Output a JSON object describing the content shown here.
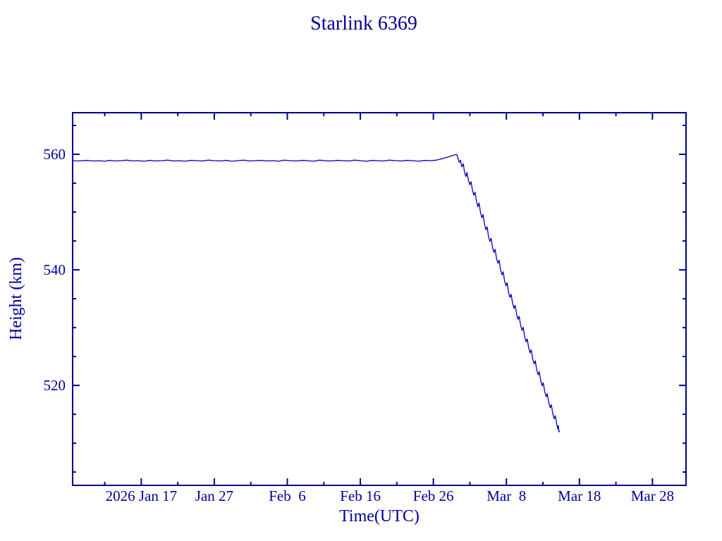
{
  "page": {
    "background": "#ffffff"
  },
  "chart_data": {
    "type": "line",
    "title": "Starlink 6369",
    "xlabel": "Time(UTC)",
    "ylabel": "Height (km)",
    "x_unit": "day-of-year 2026",
    "xlim": [
      7.6,
      91.6
    ],
    "ylim": [
      502.7,
      567.2
    ],
    "grid": false,
    "legend": null,
    "colors": {
      "background": "#ffffff",
      "axis": "#00008f",
      "text": "#00009a",
      "line": "#0000c0"
    },
    "x_ticks_major": [
      {
        "day": 17,
        "label": "2026 Jan 17"
      },
      {
        "day": 27,
        "label": "Jan 27"
      },
      {
        "day": 37,
        "label": "Feb  6"
      },
      {
        "day": 47,
        "label": "Feb 16"
      },
      {
        "day": 57,
        "label": "Feb 26"
      },
      {
        "day": 67,
        "label": "Mar  8"
      },
      {
        "day": 77,
        "label": "Mar 18"
      },
      {
        "day": 87,
        "label": "Mar 28"
      }
    ],
    "x_ticks_minor": [
      12,
      22,
      32,
      42,
      52,
      62,
      72,
      82
    ],
    "y_ticks_major": [
      {
        "value": 520,
        "label": "520"
      },
      {
        "value": 540,
        "label": "540"
      },
      {
        "value": 560,
        "label": "560"
      }
    ],
    "y_ticks_minor": [
      505,
      510,
      515,
      525,
      530,
      535,
      545,
      550,
      555,
      565
    ],
    "series": [
      {
        "name": "height_km",
        "x": [
          7.6,
          8.5,
          9.5,
          10.5,
          11.2,
          12.0,
          12.6,
          13.4,
          14.2,
          15.0,
          15.8,
          16.6,
          17.4,
          18.2,
          19.0,
          19.8,
          20.6,
          21.4,
          22.2,
          23.0,
          23.8,
          24.6,
          25.4,
          26.2,
          27.0,
          27.8,
          28.6,
          29.4,
          30.2,
          31.0,
          31.8,
          32.6,
          33.4,
          34.2,
          35.0,
          35.8,
          36.6,
          37.4,
          38.2,
          39.0,
          39.8,
          40.6,
          41.4,
          42.2,
          43.0,
          43.8,
          44.6,
          45.4,
          46.2,
          47.0,
          47.8,
          48.6,
          49.4,
          50.2,
          51.0,
          51.8,
          52.6,
          53.4,
          54.2,
          55.0,
          55.8,
          56.6,
          57.4,
          58.0,
          58.6,
          59.2,
          59.8,
          60.2,
          60.55,
          60.7,
          60.9,
          61.1,
          61.25,
          61.45,
          61.6,
          61.8,
          62.0,
          62.15,
          62.35,
          62.55,
          62.7,
          62.9,
          63.1,
          63.25,
          63.45,
          63.65,
          63.8,
          64.0,
          64.2,
          64.35,
          64.55,
          64.75,
          64.9,
          65.1,
          65.3,
          65.45,
          65.65,
          65.85,
          66.0,
          66.2,
          66.4,
          66.55,
          66.75,
          66.95,
          67.1,
          67.3,
          67.5,
          67.65,
          67.85,
          68.05,
          68.2,
          68.4,
          68.6,
          68.75,
          68.95,
          69.15,
          69.3,
          69.5,
          69.7,
          69.85,
          70.05,
          70.25,
          70.4,
          70.6,
          70.8,
          70.95,
          71.15,
          71.35,
          71.5,
          71.7,
          71.9,
          72.05,
          72.25,
          72.45,
          72.6,
          72.8,
          73.0,
          73.15,
          73.35,
          73.55,
          73.7,
          73.9,
          74.05,
          74.1,
          74.2,
          74.25
        ],
        "y": [
          558.9,
          558.85,
          558.95,
          558.85,
          558.9,
          558.8,
          558.95,
          558.85,
          558.9,
          559.0,
          558.85,
          558.9,
          558.8,
          558.95,
          558.85,
          558.9,
          559.0,
          558.85,
          558.9,
          558.8,
          558.95,
          558.9,
          558.85,
          559.0,
          558.9,
          558.85,
          558.95,
          558.8,
          558.9,
          559.0,
          558.85,
          558.9,
          558.95,
          558.85,
          558.9,
          558.8,
          559.0,
          558.9,
          558.85,
          558.95,
          558.9,
          558.8,
          559.0,
          558.9,
          558.85,
          558.95,
          558.9,
          558.85,
          559.0,
          558.9,
          558.8,
          558.95,
          558.9,
          558.85,
          559.0,
          558.9,
          558.85,
          558.95,
          558.9,
          558.8,
          558.95,
          558.9,
          559.0,
          559.15,
          559.4,
          559.6,
          559.85,
          560.0,
          558.6,
          559.0,
          557.8,
          558.4,
          557.0,
          556.1,
          556.9,
          555.5,
          554.7,
          555.3,
          553.8,
          552.9,
          553.5,
          551.9,
          550.9,
          551.6,
          550.0,
          549.0,
          549.6,
          547.9,
          546.9,
          547.5,
          545.8,
          544.9,
          545.5,
          543.9,
          543.0,
          543.6,
          542.0,
          541.1,
          541.7,
          540.0,
          539.1,
          539.7,
          538.1,
          537.2,
          537.8,
          536.1,
          535.2,
          535.8,
          534.2,
          533.3,
          533.9,
          532.3,
          531.4,
          532.0,
          530.4,
          529.5,
          530.1,
          528.4,
          527.5,
          528.1,
          526.5,
          525.6,
          526.2,
          524.6,
          523.7,
          524.3,
          522.7,
          521.8,
          522.4,
          520.8,
          519.9,
          520.5,
          518.9,
          518.0,
          518.6,
          517.0,
          516.1,
          516.7,
          515.1,
          514.2,
          514.8,
          513.2,
          512.4,
          513.1,
          511.9,
          512.2
        ]
      }
    ]
  }
}
